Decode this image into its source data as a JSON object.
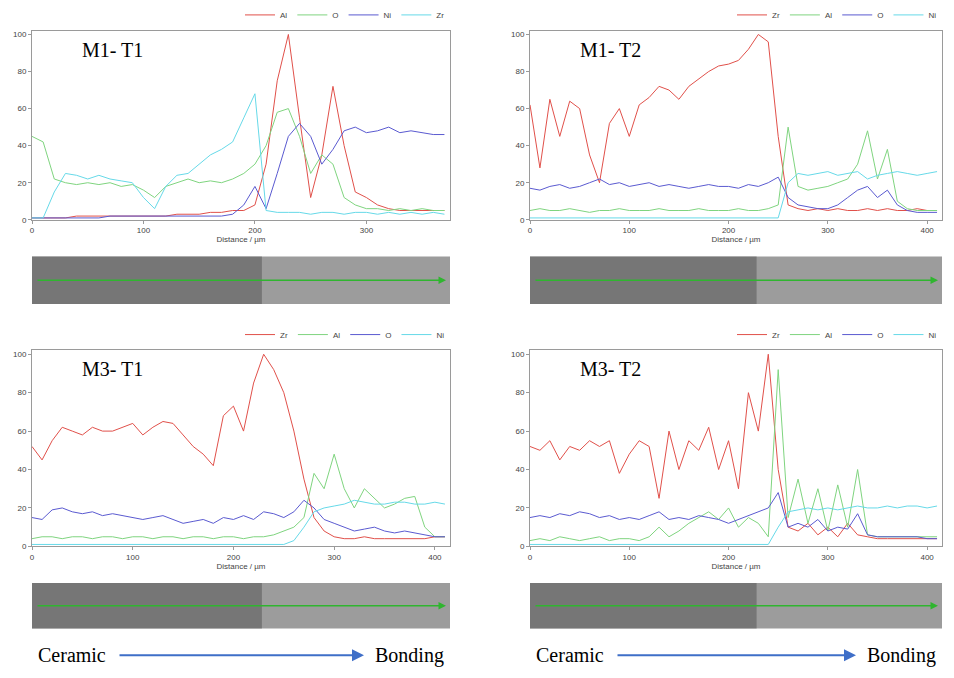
{
  "chart_data": [
    {
      "type": "line",
      "title": "M1- T1",
      "x_label": "Distance / µm",
      "x": [
        0,
        10,
        20,
        30,
        40,
        50,
        60,
        70,
        80,
        90,
        100,
        110,
        120,
        130,
        140,
        150,
        160,
        170,
        180,
        190,
        200,
        210,
        220,
        230,
        240,
        250,
        260,
        270,
        280,
        290,
        300,
        310,
        320,
        330,
        340,
        350,
        360,
        370
      ],
      "series": [
        {
          "name": "Al",
          "color": "#e0504a",
          "values": [
            1,
            1,
            1,
            1,
            2,
            2,
            2,
            2,
            2,
            2,
            2,
            2,
            2,
            3,
            3,
            3,
            4,
            4,
            5,
            5,
            8,
            30,
            75,
            100,
            55,
            12,
            35,
            72,
            40,
            15,
            12,
            8,
            6,
            5,
            5,
            5,
            5,
            5
          ]
        },
        {
          "name": "O",
          "color": "#7fd47f",
          "values": [
            45,
            42,
            22,
            20,
            19,
            20,
            19,
            20,
            18,
            19,
            16,
            12,
            18,
            20,
            22,
            20,
            21,
            20,
            22,
            25,
            30,
            40,
            58,
            60,
            45,
            25,
            35,
            30,
            12,
            8,
            6,
            6,
            5,
            6,
            5,
            6,
            5,
            5
          ]
        },
        {
          "name": "Ni",
          "color": "#5a5ad0",
          "values": [
            1,
            1,
            1,
            1,
            1,
            1,
            1,
            2,
            2,
            2,
            2,
            2,
            2,
            2,
            2,
            2,
            2,
            2,
            3,
            8,
            18,
            6,
            25,
            45,
            52,
            45,
            30,
            38,
            48,
            50,
            47,
            48,
            50,
            47,
            48,
            47,
            46,
            46
          ]
        },
        {
          "name": "Zr",
          "color": "#66d9e8",
          "values": [
            1,
            1,
            15,
            25,
            24,
            22,
            24,
            22,
            21,
            20,
            12,
            6,
            18,
            24,
            25,
            30,
            35,
            38,
            42,
            55,
            68,
            5,
            4,
            4,
            4,
            3,
            4,
            4,
            3,
            4,
            4,
            3,
            4,
            3,
            4,
            3,
            4,
            3
          ]
        }
      ],
      "xlim": [
        0,
        375
      ],
      "xticks": [
        0,
        100,
        200,
        300
      ],
      "ylim": [
        0,
        102
      ],
      "yticks": [
        0,
        20,
        40,
        60,
        80,
        100
      ],
      "grid": false,
      "legend": "top right"
    },
    {
      "type": "line",
      "title": "M1- T2",
      "x_label": "Distance / µm",
      "x": [
        0,
        10,
        20,
        30,
        40,
        50,
        60,
        70,
        80,
        90,
        100,
        110,
        120,
        130,
        140,
        150,
        160,
        170,
        180,
        190,
        200,
        210,
        220,
        230,
        240,
        250,
        260,
        270,
        280,
        290,
        300,
        310,
        320,
        330,
        340,
        350,
        360,
        370,
        380,
        390,
        400,
        410
      ],
      "series": [
        {
          "name": "Zr",
          "color": "#e0504a",
          "values": [
            62,
            28,
            65,
            45,
            64,
            60,
            35,
            20,
            52,
            60,
            45,
            62,
            66,
            72,
            70,
            65,
            72,
            76,
            80,
            83,
            84,
            86,
            92,
            100,
            96,
            45,
            8,
            6,
            5,
            6,
            5,
            6,
            5,
            5,
            6,
            5,
            6,
            5,
            5,
            6,
            5,
            5
          ]
        },
        {
          "name": "Al",
          "color": "#7fd47f",
          "values": [
            5,
            6,
            5,
            5,
            6,
            5,
            4,
            5,
            5,
            6,
            5,
            5,
            5,
            6,
            5,
            5,
            5,
            6,
            5,
            5,
            5,
            6,
            5,
            5,
            6,
            8,
            50,
            18,
            16,
            17,
            18,
            20,
            22,
            30,
            48,
            22,
            38,
            10,
            6,
            5,
            5,
            5
          ]
        },
        {
          "name": "O",
          "color": "#5a5ad0",
          "values": [
            17,
            16,
            18,
            19,
            17,
            18,
            20,
            22,
            19,
            20,
            18,
            19,
            20,
            18,
            19,
            18,
            17,
            18,
            19,
            18,
            18,
            17,
            19,
            18,
            20,
            23,
            12,
            8,
            7,
            6,
            6,
            8,
            12,
            16,
            18,
            12,
            16,
            8,
            5,
            4,
            4,
            4
          ]
        },
        {
          "name": "Ni",
          "color": "#66d9e8",
          "values": [
            1,
            1,
            1,
            1,
            1,
            1,
            1,
            1,
            1,
            1,
            1,
            1,
            1,
            1,
            1,
            1,
            1,
            1,
            1,
            1,
            1,
            1,
            1,
            1,
            1,
            1,
            20,
            25,
            24,
            25,
            26,
            24,
            25,
            26,
            22,
            24,
            25,
            26,
            25,
            24,
            25,
            26
          ]
        }
      ],
      "xlim": [
        0,
        415
      ],
      "xticks": [
        0,
        100,
        200,
        300,
        400
      ],
      "ylim": [
        0,
        102
      ],
      "yticks": [
        0,
        20,
        40,
        60,
        80,
        100
      ],
      "grid": false,
      "legend": "top right"
    },
    {
      "type": "line",
      "title": "M3- T1",
      "x_label": "Distance / µm",
      "x": [
        0,
        10,
        20,
        30,
        40,
        50,
        60,
        70,
        80,
        90,
        100,
        110,
        120,
        130,
        140,
        150,
        160,
        170,
        180,
        190,
        200,
        210,
        220,
        230,
        240,
        250,
        260,
        270,
        280,
        290,
        300,
        310,
        320,
        330,
        340,
        350,
        360,
        370,
        380,
        390,
        400,
        410
      ],
      "series": [
        {
          "name": "Zr",
          "color": "#e0504a",
          "values": [
            52,
            45,
            55,
            62,
            60,
            58,
            62,
            60,
            60,
            62,
            64,
            58,
            62,
            65,
            64,
            58,
            52,
            48,
            42,
            68,
            73,
            60,
            85,
            100,
            92,
            80,
            60,
            35,
            15,
            8,
            5,
            4,
            4,
            5,
            4,
            4,
            4,
            4,
            4,
            4,
            5,
            5
          ]
        },
        {
          "name": "Al",
          "color": "#7fd47f",
          "values": [
            4,
            5,
            5,
            4,
            5,
            5,
            4,
            5,
            5,
            4,
            5,
            5,
            4,
            5,
            5,
            4,
            5,
            5,
            4,
            5,
            5,
            4,
            5,
            5,
            6,
            8,
            10,
            15,
            38,
            30,
            48,
            30,
            20,
            30,
            25,
            20,
            22,
            25,
            26,
            10,
            5,
            5
          ]
        },
        {
          "name": "O",
          "color": "#5a5ad0",
          "values": [
            15,
            14,
            19,
            20,
            18,
            17,
            18,
            16,
            17,
            16,
            15,
            14,
            15,
            16,
            14,
            12,
            13,
            14,
            12,
            15,
            14,
            16,
            14,
            18,
            17,
            15,
            18,
            24,
            20,
            14,
            12,
            10,
            8,
            9,
            10,
            8,
            7,
            8,
            7,
            6,
            5,
            5
          ]
        },
        {
          "name": "Ni",
          "color": "#66d9e8",
          "values": [
            1,
            1,
            1,
            1,
            1,
            1,
            1,
            1,
            1,
            1,
            1,
            1,
            1,
            1,
            1,
            1,
            1,
            1,
            1,
            1,
            1,
            1,
            1,
            1,
            1,
            1,
            3,
            10,
            18,
            20,
            21,
            22,
            24,
            23,
            22,
            22,
            23,
            23,
            22,
            22,
            23,
            22
          ]
        }
      ],
      "xlim": [
        0,
        415
      ],
      "xticks": [
        0,
        100,
        200,
        300,
        400
      ],
      "ylim": [
        0,
        102
      ],
      "yticks": [
        0,
        20,
        40,
        60,
        80,
        100
      ],
      "grid": false,
      "legend": "top right"
    },
    {
      "type": "line",
      "title": "M3- T2",
      "x_label": "Distance / µm",
      "x": [
        0,
        10,
        20,
        30,
        40,
        50,
        60,
        70,
        80,
        90,
        100,
        110,
        120,
        130,
        140,
        150,
        160,
        170,
        180,
        190,
        200,
        210,
        220,
        230,
        240,
        250,
        260,
        270,
        280,
        290,
        300,
        310,
        320,
        330,
        340,
        350,
        360,
        370,
        380,
        390,
        400,
        410
      ],
      "series": [
        {
          "name": "Zr",
          "color": "#e0504a",
          "values": [
            52,
            50,
            55,
            45,
            52,
            50,
            55,
            52,
            55,
            38,
            48,
            55,
            52,
            25,
            60,
            40,
            55,
            50,
            62,
            40,
            55,
            30,
            80,
            60,
            100,
            40,
            10,
            8,
            12,
            6,
            10,
            5,
            12,
            6,
            5,
            4,
            4,
            4,
            4,
            4,
            4,
            4
          ]
        },
        {
          "name": "Al",
          "color": "#7fd47f",
          "values": [
            3,
            4,
            3,
            5,
            4,
            3,
            4,
            5,
            3,
            4,
            4,
            3,
            5,
            10,
            5,
            8,
            12,
            15,
            18,
            14,
            20,
            10,
            15,
            12,
            5,
            92,
            15,
            35,
            12,
            30,
            8,
            32,
            10,
            40,
            6,
            5,
            5,
            5,
            5,
            5,
            5,
            5
          ]
        },
        {
          "name": "O",
          "color": "#5a5ad0",
          "values": [
            15,
            16,
            15,
            17,
            16,
            18,
            17,
            15,
            16,
            14,
            15,
            14,
            16,
            18,
            14,
            15,
            14,
            16,
            15,
            14,
            12,
            14,
            16,
            18,
            20,
            28,
            10,
            12,
            10,
            14,
            8,
            10,
            9,
            17,
            6,
            5,
            5,
            5,
            5,
            5,
            4,
            4
          ]
        },
        {
          "name": "Ni",
          "color": "#66d9e8",
          "values": [
            1,
            1,
            1,
            1,
            1,
            1,
            1,
            1,
            1,
            1,
            1,
            1,
            1,
            1,
            1,
            1,
            1,
            1,
            1,
            1,
            1,
            1,
            1,
            1,
            1,
            10,
            18,
            19,
            20,
            19,
            20,
            19,
            20,
            21,
            20,
            20,
            21,
            20,
            21,
            21,
            20,
            21
          ]
        }
      ],
      "xlim": [
        0,
        415
      ],
      "xticks": [
        0,
        100,
        200,
        300,
        400
      ],
      "ylim": [
        0,
        102
      ],
      "yticks": [
        0,
        20,
        40,
        60,
        80,
        100
      ],
      "grid": false,
      "legend": "top right"
    }
  ],
  "captions": [
    {
      "from": "Ceramic",
      "to": "Bonding"
    },
    {
      "from": "Ceramic",
      "to": "Bonding"
    }
  ]
}
